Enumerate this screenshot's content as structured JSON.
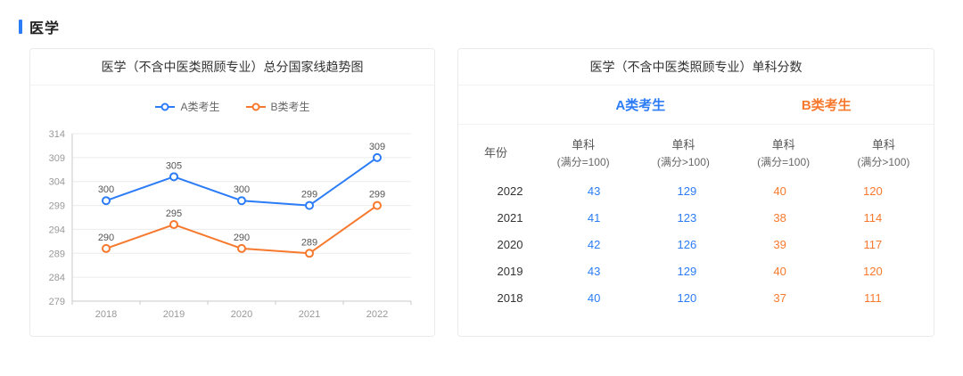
{
  "colors": {
    "blue": "#2b7cf6",
    "orange": "#f7792e",
    "axis": "#c9c9c9",
    "grid": "#ececec",
    "tick_label": "#999999",
    "data_label": "#555555"
  },
  "section": {
    "title": "医学"
  },
  "chart_card": {
    "title": "医学（不含中医类照顾专业）总分国家线趋势图"
  },
  "chart_data": {
    "type": "line",
    "title": "医学（不含中医类照顾专业）总分国家线趋势图",
    "x": [
      "2018",
      "2019",
      "2020",
      "2021",
      "2022"
    ],
    "series": [
      {
        "name": "A类考生",
        "color": "#2b7cf6",
        "values": [
          300,
          305,
          300,
          299,
          309
        ]
      },
      {
        "name": "B类考生",
        "color": "#f7792e",
        "values": [
          290,
          295,
          290,
          289,
          299
        ]
      }
    ],
    "ylim": [
      279,
      314
    ],
    "ytick_step": 5,
    "grid": true,
    "legend_position": "top",
    "xlabel": "",
    "ylabel": ""
  },
  "table_card": {
    "title": "医学（不含中医类照顾专业）单科分数",
    "groups": [
      {
        "label": "A类考生"
      },
      {
        "label": "B类考生"
      }
    ],
    "columns": [
      {
        "l1": "年份",
        "l2": ""
      },
      {
        "l1": "单科",
        "l2": "(满分=100)"
      },
      {
        "l1": "单科",
        "l2": "(满分>100)"
      },
      {
        "l1": "单科",
        "l2": "(满分=100)"
      },
      {
        "l1": "单科",
        "l2": "(满分>100)"
      }
    ],
    "rows": [
      [
        "2022",
        "43",
        "129",
        "40",
        "120"
      ],
      [
        "2021",
        "41",
        "123",
        "38",
        "114"
      ],
      [
        "2020",
        "42",
        "126",
        "39",
        "117"
      ],
      [
        "2019",
        "43",
        "129",
        "40",
        "120"
      ],
      [
        "2018",
        "40",
        "120",
        "37",
        "111"
      ]
    ]
  }
}
